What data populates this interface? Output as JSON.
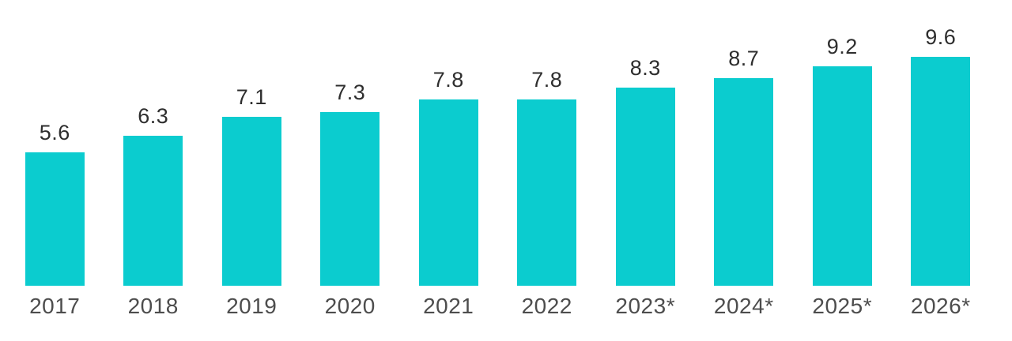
{
  "chart_data": {
    "type": "bar",
    "categories": [
      "2017",
      "2018",
      "2019",
      "2020",
      "2021",
      "2022",
      "2023*",
      "2024*",
      "2025*",
      "2026*"
    ],
    "values": [
      5.6,
      6.3,
      7.1,
      7.3,
      7.8,
      7.8,
      8.3,
      8.7,
      9.2,
      9.6
    ],
    "series_count": 1,
    "value_labels": [
      "5.6",
      "6.3",
      "7.1",
      "7.3",
      "7.8",
      "7.8",
      "8.3",
      "8.7",
      "9.2",
      "9.6"
    ],
    "value_label_position": "above-bar",
    "bar_color": "#0bcccf",
    "value_label_color": "#2e2e2e",
    "axis_label_color": "#4d4d4d",
    "background_color": "#ffffff",
    "grid": false,
    "legend": false,
    "y_axis_shown": false,
    "ylim": [
      0,
      12
    ]
  }
}
